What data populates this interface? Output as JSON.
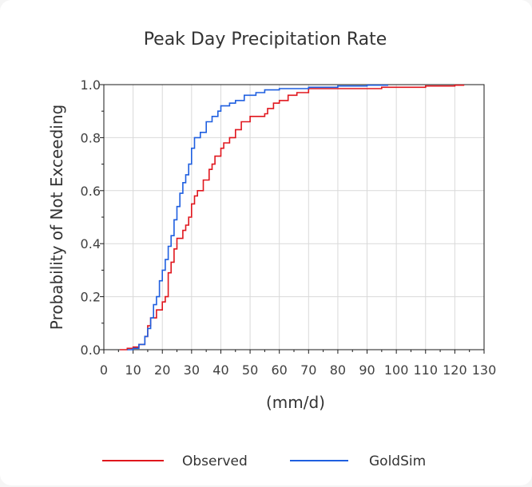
{
  "chart_data": {
    "type": "line",
    "title": "Peak Day Precipitation Rate",
    "xlabel": "(mm/d)",
    "ylabel": "Probability of Not Exceeding",
    "xlim": [
      0,
      130
    ],
    "ylim": [
      0,
      1.0
    ],
    "x_ticks": [
      "0",
      "10",
      "20",
      "30",
      "40",
      "50",
      "60",
      "70",
      "80",
      "90",
      "100",
      "110",
      "120",
      "130"
    ],
    "y_ticks": [
      "0.0",
      "0.2",
      "0.4",
      "0.6",
      "0.8",
      "1.0"
    ],
    "grid": true,
    "legend_position": "bottom",
    "series": [
      {
        "name": "Observed",
        "color": "#e0161d",
        "points": [
          [
            5.5,
            0
          ],
          [
            8,
            0.005
          ],
          [
            10,
            0.01
          ],
          [
            12,
            0.02
          ],
          [
            14,
            0.05
          ],
          [
            15,
            0.09
          ],
          [
            16,
            0.12
          ],
          [
            18,
            0.15
          ],
          [
            20,
            0.18
          ],
          [
            21,
            0.2
          ],
          [
            22,
            0.29
          ],
          [
            23,
            0.33
          ],
          [
            24,
            0.38
          ],
          [
            25,
            0.42
          ],
          [
            27,
            0.45
          ],
          [
            28,
            0.47
          ],
          [
            29,
            0.5
          ],
          [
            30,
            0.55
          ],
          [
            31,
            0.58
          ],
          [
            32,
            0.6
          ],
          [
            34,
            0.64
          ],
          [
            36,
            0.68
          ],
          [
            37,
            0.7
          ],
          [
            38,
            0.73
          ],
          [
            40,
            0.76
          ],
          [
            41,
            0.78
          ],
          [
            43,
            0.8
          ],
          [
            45,
            0.83
          ],
          [
            47,
            0.86
          ],
          [
            50,
            0.88
          ],
          [
            55,
            0.89
          ],
          [
            56,
            0.91
          ],
          [
            58,
            0.93
          ],
          [
            60,
            0.94
          ],
          [
            63,
            0.96
          ],
          [
            66,
            0.97
          ],
          [
            70,
            0.985
          ],
          [
            80,
            0.985
          ],
          [
            95,
            0.99
          ],
          [
            110,
            0.995
          ],
          [
            120,
            0.998
          ],
          [
            123,
            1.0
          ]
        ]
      },
      {
        "name": "GoldSim",
        "color": "#1f5fe0",
        "points": [
          [
            8,
            0
          ],
          [
            10,
            0.005
          ],
          [
            12,
            0.02
          ],
          [
            14,
            0.05
          ],
          [
            15,
            0.08
          ],
          [
            16,
            0.12
          ],
          [
            17,
            0.17
          ],
          [
            18,
            0.2
          ],
          [
            19,
            0.26
          ],
          [
            20,
            0.3
          ],
          [
            21,
            0.34
          ],
          [
            22,
            0.39
          ],
          [
            23,
            0.43
          ],
          [
            24,
            0.49
          ],
          [
            25,
            0.54
          ],
          [
            26,
            0.59
          ],
          [
            27,
            0.63
          ],
          [
            28,
            0.66
          ],
          [
            29,
            0.7
          ],
          [
            30,
            0.76
          ],
          [
            31,
            0.8
          ],
          [
            33,
            0.82
          ],
          [
            35,
            0.86
          ],
          [
            37,
            0.88
          ],
          [
            39,
            0.9
          ],
          [
            40,
            0.92
          ],
          [
            43,
            0.93
          ],
          [
            45,
            0.94
          ],
          [
            48,
            0.96
          ],
          [
            52,
            0.97
          ],
          [
            55,
            0.98
          ],
          [
            60,
            0.985
          ],
          [
            70,
            0.99
          ],
          [
            80,
            0.995
          ],
          [
            90,
            0.998
          ],
          [
            97,
            1.0
          ]
        ]
      }
    ]
  }
}
